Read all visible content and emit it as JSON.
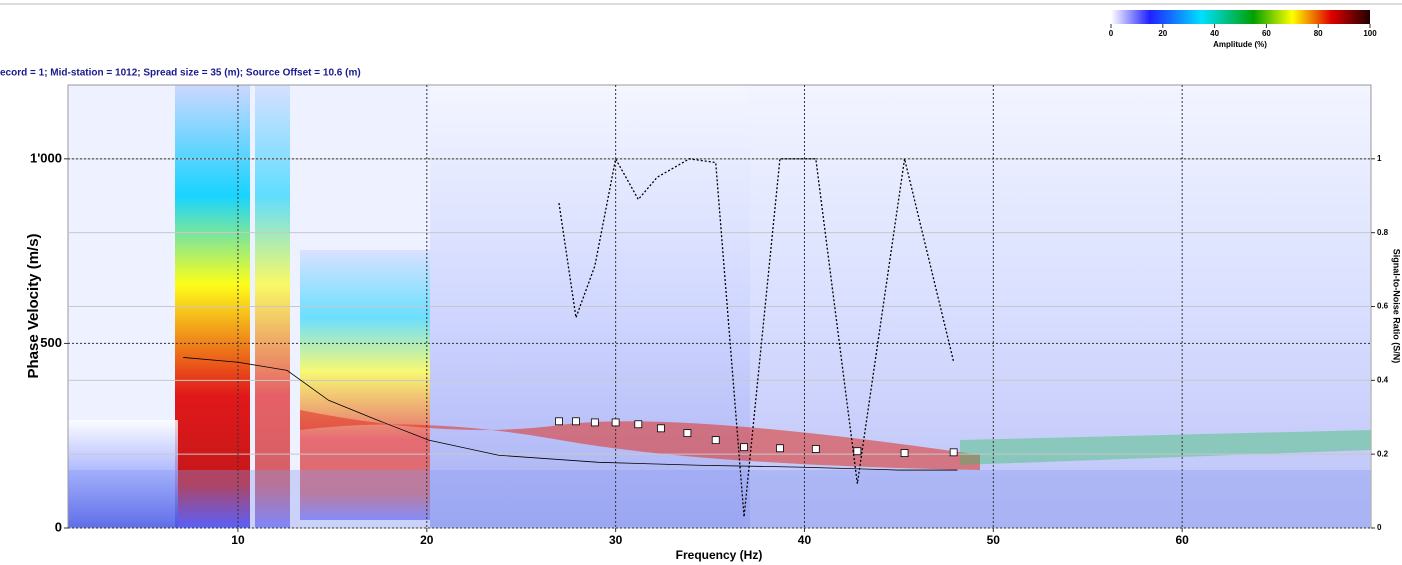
{
  "chart_data": {
    "type": "line",
    "title": "ecord = 1; Mid-station = 1012; Spread size = 35 (m); Source Offset = 10.6 (m)",
    "x_label": "Frequency (Hz)",
    "y_label": "Phase Velocity (m/s)",
    "y2_label": "Signal-to-Noise Ratio (S/N)",
    "xlim": [
      1,
      70
    ],
    "xticks": [
      10,
      20,
      30,
      40,
      50,
      60
    ],
    "ylim": [
      0,
      1200
    ],
    "yticks": [
      0,
      500,
      {
        "value": 1000,
        "label": "1'000"
      }
    ],
    "y2lim": [
      0,
      1.2
    ],
    "y2ticks": [
      0,
      0.2,
      0.4,
      0.6,
      0.8,
      1
    ],
    "grid": true,
    "colorbar": {
      "label": "Amplitude (%)",
      "lim": [
        0,
        100
      ],
      "ticks": [
        0,
        20,
        40,
        60,
        80,
        100
      ]
    },
    "series": [
      {
        "type": "line",
        "color": "#000000",
        "x": [
          7.1,
          10,
          12.6,
          14.8,
          17.4,
          20.1,
          23.8,
          29.1,
          34.4,
          39.7,
          45,
          48.1
        ],
        "values": [
          462,
          449,
          427,
          346,
          292,
          238,
          197,
          178,
          170,
          165,
          157,
          157
        ]
      },
      {
        "type": "line",
        "axis": "y2",
        "color": "#000000",
        "dashed": true,
        "x": [
          27,
          27.9,
          28.9,
          30,
          31.2,
          32.2,
          33.9,
          35.3,
          36.8,
          38.7,
          40.6,
          42.8,
          45.3,
          47.9
        ],
        "values": [
          0.88,
          0.57,
          0.71,
          1,
          0.89,
          0.95,
          1,
          0.99,
          0.03,
          1,
          1,
          0.12,
          1,
          0.45
        ]
      },
      {
        "type": "scatter",
        "color": "#ffffff",
        "x": [
          27,
          27.9,
          28.9,
          30,
          31.2,
          32.4,
          33.8,
          35.3,
          36.8,
          38.7,
          40.6,
          42.8,
          45.3,
          47.9
        ],
        "values": [
          289,
          289,
          286,
          286,
          281,
          270,
          257,
          238,
          219,
          216,
          214,
          208,
          203,
          205
        ]
      }
    ]
  }
}
